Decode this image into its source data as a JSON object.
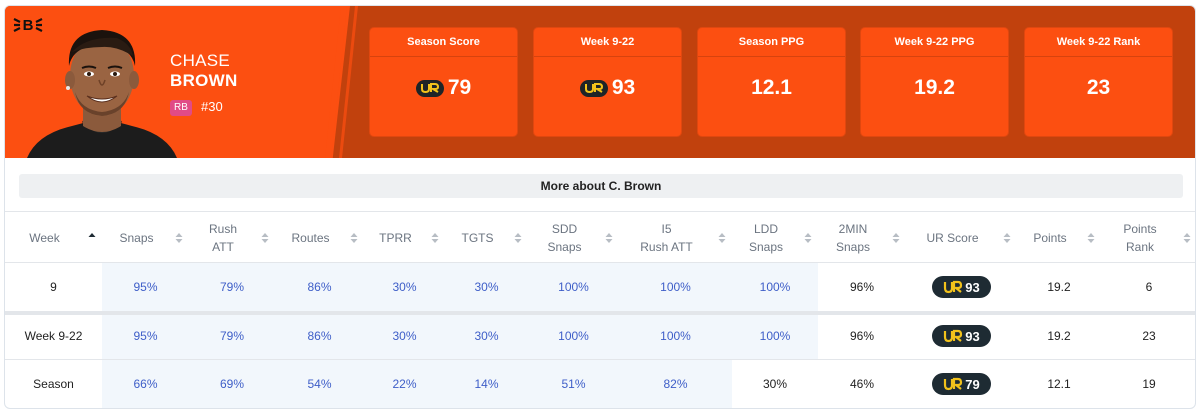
{
  "player": {
    "first_name": "CHASE",
    "last_name": "BROWN",
    "position": "RB",
    "jersey": "#30",
    "team_logo": "bengals-logo-icon"
  },
  "colors": {
    "header_dark": "#c1410d",
    "header_orange": "#fc4f11",
    "position_badge": "#e14b86",
    "link_blue": "#3e5ec8",
    "pill_dark": "#1e2b33",
    "ur_yellow": "#f2c21b"
  },
  "stats": [
    {
      "label": "Season Score",
      "value": "79",
      "ur_icon": true
    },
    {
      "label": "Week 9-22",
      "value": "93",
      "ur_icon": true
    },
    {
      "label": "Season PPG",
      "value": "12.1",
      "ur_icon": false
    },
    {
      "label": "Week 9-22 PPG",
      "value": "19.2",
      "ur_icon": false
    },
    {
      "label": "Week 9-22 Rank",
      "value": "23",
      "ur_icon": false
    }
  ],
  "more_button": "More about C. Brown",
  "table": {
    "columns": [
      {
        "line1": "Week",
        "line2": ""
      },
      {
        "line1": "Snaps",
        "line2": ""
      },
      {
        "line1": "Rush",
        "line2": "ATT"
      },
      {
        "line1": "Routes",
        "line2": ""
      },
      {
        "line1": "TPRR",
        "line2": ""
      },
      {
        "line1": "TGTS",
        "line2": ""
      },
      {
        "line1": "SDD",
        "line2": "Snaps"
      },
      {
        "line1": "I5",
        "line2": "Rush ATT"
      },
      {
        "line1": "LDD",
        "line2": "Snaps"
      },
      {
        "line1": "2MIN",
        "line2": "Snaps"
      },
      {
        "line1": "UR Score",
        "line2": ""
      },
      {
        "line1": "Points",
        "line2": ""
      },
      {
        "line1": "Points",
        "line2": "Rank"
      }
    ],
    "rows": [
      {
        "cells": [
          "9",
          "95%",
          "79%",
          "86%",
          "30%",
          "30%",
          "100%",
          "100%",
          "100%",
          "96%",
          "93",
          "19.2",
          "6"
        ],
        "blue_upto": 8
      },
      {
        "cells": [
          "Week 9-22",
          "95%",
          "79%",
          "86%",
          "30%",
          "30%",
          "100%",
          "100%",
          "100%",
          "96%",
          "93",
          "19.2",
          "23"
        ],
        "blue_upto": 8
      },
      {
        "cells": [
          "Season",
          "66%",
          "69%",
          "54%",
          "22%",
          "14%",
          "51%",
          "82%",
          "30%",
          "46%",
          "79",
          "12.1",
          "19"
        ],
        "blue_upto": 7
      }
    ]
  }
}
